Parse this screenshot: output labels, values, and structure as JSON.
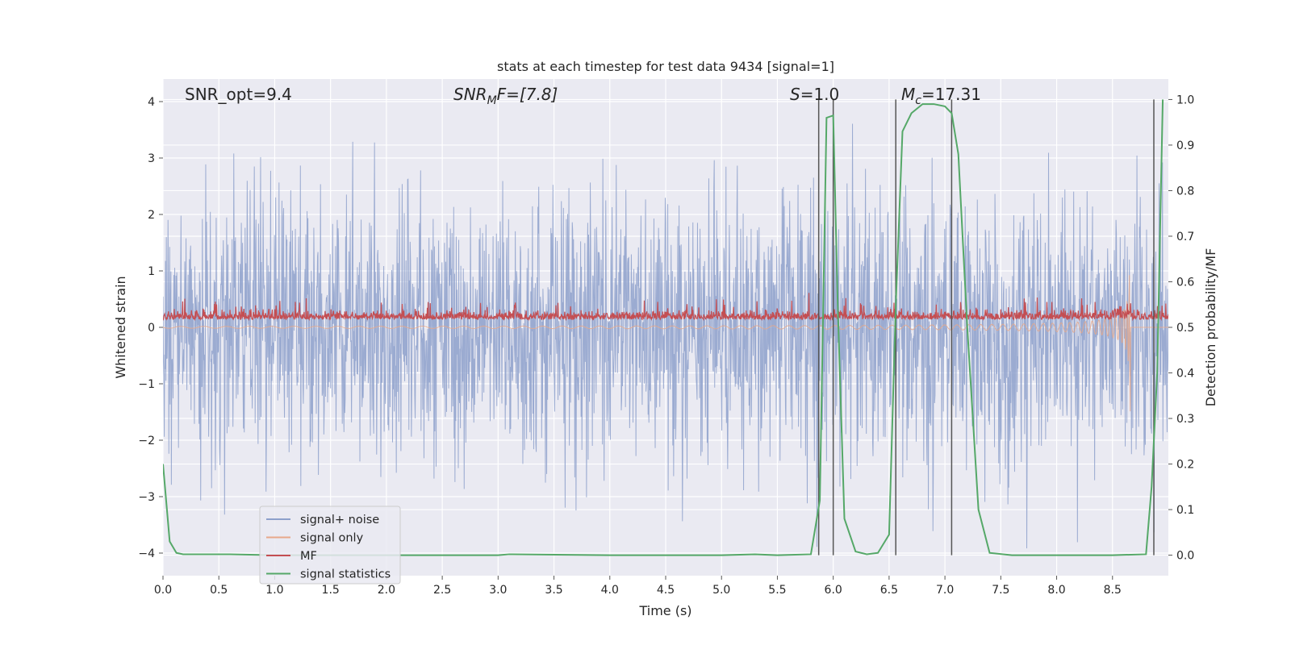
{
  "chart_data": {
    "type": "line",
    "title": "stats at each timestep for test data 9434 [signal=1]",
    "xlabel": "Time (s)",
    "ylabel": "Whitened strain",
    "ylabel_right": "Detection probability/MF",
    "xlim": [
      0.0,
      9.0
    ],
    "ylim": [
      -4.4,
      4.4
    ],
    "ylim_right": [
      -0.045,
      1.045
    ],
    "x_ticks": [
      "0.0",
      "0.5",
      "1.0",
      "1.5",
      "2.0",
      "2.5",
      "3.0",
      "3.5",
      "4.0",
      "4.5",
      "5.0",
      "5.5",
      "6.0",
      "6.5",
      "7.0",
      "7.5",
      "8.0",
      "8.5"
    ],
    "y_ticks": [
      "4",
      "3",
      "2",
      "1",
      "0",
      "−1",
      "−2",
      "−3",
      "−4"
    ],
    "y_ticks_right": [
      "1.0",
      "0.9",
      "0.8",
      "0.7",
      "0.6",
      "0.5",
      "0.4",
      "0.3",
      "0.2",
      "0.1",
      "0.0"
    ],
    "annotations": {
      "snr_opt": "SNR_opt=9.4",
      "snr_mf_base": "SNR",
      "snr_mf_sub": "M",
      "snr_mf_rest": "F=[7.8]",
      "s_base": "S",
      "s_rest": "=1.0",
      "mc_base": "M",
      "mc_sub": "c",
      "mc_rest": "=17.31"
    },
    "legend": [
      {
        "label": "signal+ noise",
        "color": "#8da0cb"
      },
      {
        "label": "signal only",
        "color": "#e8a88a"
      },
      {
        "label": "MF",
        "color": "#c44e52"
      },
      {
        "label": "signal statistics",
        "color": "#55a868"
      }
    ],
    "series": [
      {
        "name": "signal+ noise",
        "description": "whitened strain, noise amplitude ~1.3 std, range about -3.8 to 4.0"
      },
      {
        "name": "signal only",
        "description": "chirp growing in amplitude, peak near t=8.65 s, amplitude ~1.7"
      },
      {
        "name": "MF",
        "description": "matched filter output around 0.15, spikes up to ~0.5"
      },
      {
        "name": "signal statistics",
        "axis": "right",
        "x": [
          0.0,
          0.06,
          0.12,
          0.18,
          0.3,
          0.6,
          1.0,
          2.0,
          3.0,
          3.1,
          4.0,
          5.0,
          5.3,
          5.5,
          5.8,
          5.88,
          5.94,
          6.0,
          6.04,
          6.1,
          6.2,
          6.3,
          6.4,
          6.5,
          6.56,
          6.62,
          6.7,
          6.8,
          6.9,
          7.0,
          7.06,
          7.12,
          7.2,
          7.3,
          7.4,
          7.6,
          8.0,
          8.5,
          8.8,
          8.85,
          8.9,
          8.95
        ],
        "y": [
          0.2,
          0.03,
          0.005,
          0.002,
          0.002,
          0.002,
          0.0,
          0.0,
          0.0,
          0.002,
          0.0,
          0.0,
          0.002,
          0.0,
          0.002,
          0.12,
          0.96,
          0.965,
          0.55,
          0.08,
          0.008,
          0.002,
          0.005,
          0.045,
          0.55,
          0.93,
          0.97,
          0.99,
          0.99,
          0.985,
          0.97,
          0.88,
          0.5,
          0.1,
          0.005,
          0.0,
          0.0,
          0.0,
          0.002,
          0.15,
          0.4,
          1.0
        ]
      }
    ],
    "vertical_lines_x": [
      5.87,
      6.0,
      6.56,
      7.06,
      8.87
    ]
  }
}
